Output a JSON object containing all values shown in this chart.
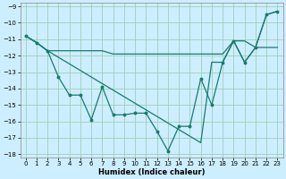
{
  "xlabel": "Humidex (Indice chaleur)",
  "bg_color": "#cceeff",
  "grid_color": "#9ecfbb",
  "line_color": "#1a7a6e",
  "xlim": [
    -0.5,
    23.5
  ],
  "ylim": [
    -18.2,
    -8.8
  ],
  "xticks": [
    0,
    1,
    2,
    3,
    4,
    5,
    6,
    7,
    8,
    9,
    10,
    11,
    12,
    13,
    14,
    15,
    16,
    17,
    18,
    19,
    20,
    21,
    22,
    23
  ],
  "yticks": [
    -18,
    -17,
    -16,
    -15,
    -14,
    -13,
    -12,
    -11,
    -10,
    -9
  ],
  "line1_x": [
    0,
    1,
    2,
    3,
    4,
    5,
    6,
    7,
    8,
    9,
    10,
    11,
    12,
    13,
    14,
    15,
    16,
    17,
    18,
    19,
    20,
    21,
    22,
    23
  ],
  "line1_y": [
    -10.8,
    -11.2,
    -11.7,
    -13.3,
    -14.4,
    -14.4,
    -15.9,
    -13.9,
    -15.6,
    -15.6,
    -15.5,
    -15.5,
    -16.6,
    -17.8,
    -16.3,
    -16.3,
    -13.4,
    -15.0,
    -12.4,
    -11.1,
    -12.4,
    -11.5,
    -9.5,
    -9.3
  ],
  "line2_x": [
    0,
    1,
    2,
    3,
    4,
    5,
    6,
    7,
    8,
    9,
    10,
    11,
    12,
    13,
    14,
    15,
    16,
    17,
    18,
    19,
    20,
    21,
    22,
    23
  ],
  "line2_y": [
    -10.8,
    -11.2,
    -11.7,
    -11.7,
    -11.7,
    -11.7,
    -11.7,
    -11.7,
    -11.9,
    -11.9,
    -11.9,
    -11.9,
    -11.9,
    -11.9,
    -11.9,
    -11.9,
    -11.9,
    -11.9,
    -11.9,
    -11.1,
    -11.1,
    -11.5,
    -11.5,
    -11.5
  ],
  "line3_x": [
    0,
    1,
    2,
    3,
    4,
    5,
    6,
    7,
    8,
    9,
    10,
    11,
    12,
    13,
    14,
    15,
    16,
    17,
    18,
    19,
    20,
    21,
    22,
    23
  ],
  "line3_y": [
    -10.8,
    -11.2,
    -11.7,
    -12.1,
    -12.5,
    -12.9,
    -13.3,
    -13.7,
    -14.1,
    -14.5,
    -14.9,
    -15.3,
    -15.7,
    -16.1,
    -16.5,
    -16.9,
    -17.3,
    -12.4,
    -12.4,
    -11.1,
    -12.4,
    -11.5,
    -9.5,
    -9.3
  ]
}
